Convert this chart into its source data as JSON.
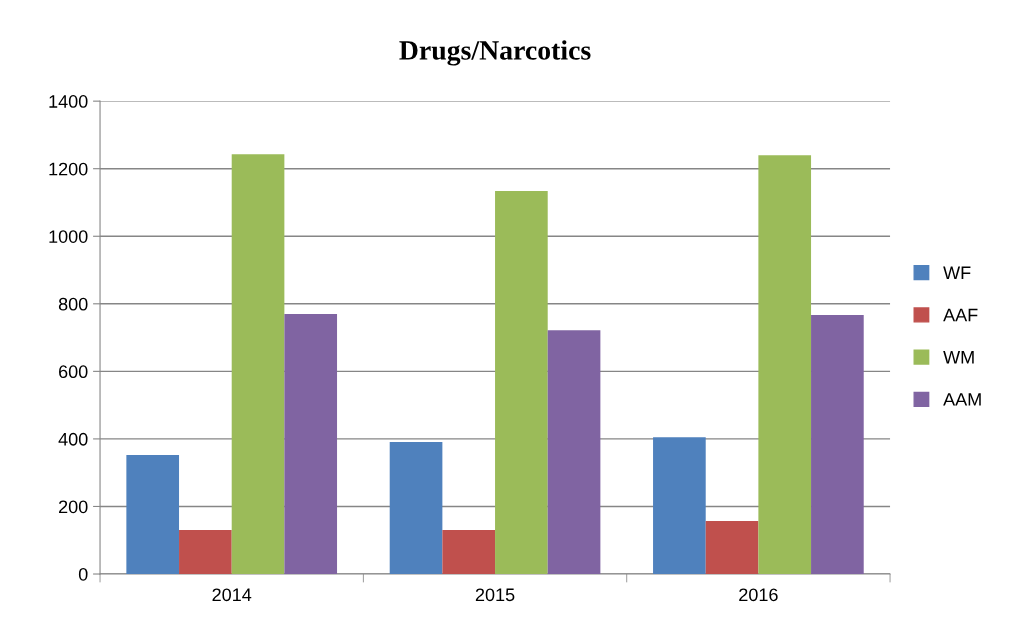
{
  "chart_data": {
    "type": "bar",
    "title": "Drugs/Narcotics",
    "categories": [
      "2014",
      "2015",
      "2016"
    ],
    "series": [
      {
        "name": "WF",
        "color": "#4f81bd",
        "values": [
          352,
          391,
          405
        ]
      },
      {
        "name": "AAF",
        "color": "#c0504d",
        "values": [
          130,
          130,
          157
        ]
      },
      {
        "name": "WM",
        "color": "#9bbb59",
        "values": [
          1243,
          1134,
          1240
        ]
      },
      {
        "name": "AAM",
        "color": "#8064a2",
        "values": [
          770,
          722,
          767
        ]
      }
    ],
    "ylim": [
      0,
      1400
    ],
    "yticks": [
      0,
      200,
      400,
      600,
      800,
      1000,
      1200,
      1400
    ],
    "grid": "y",
    "legend": "right"
  }
}
